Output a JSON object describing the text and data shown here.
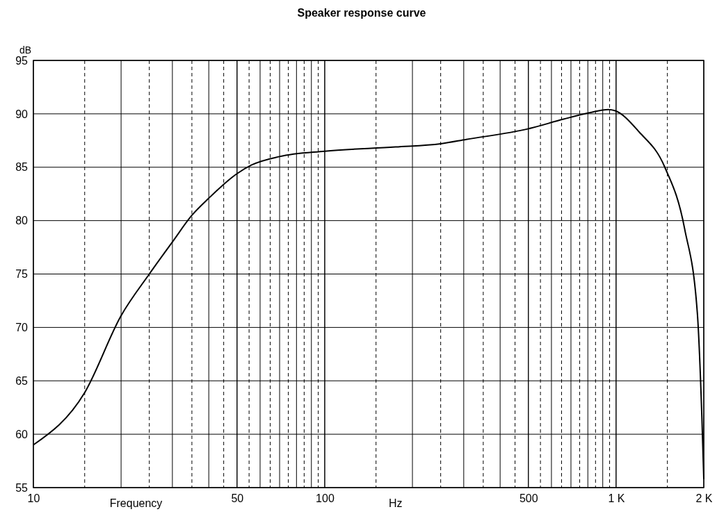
{
  "chart_data": {
    "type": "line",
    "title": "Speaker response curve",
    "xlabel": "Frequency",
    "ylabel": "dB",
    "annotations": [
      "Hz"
    ],
    "log": "x",
    "grid": true,
    "marker": "none",
    "line_style": "solid",
    "xlim": [
      10,
      2000
    ],
    "xticks": [
      10,
      50,
      100,
      500,
      {
        "value": 1000,
        "label": "1 K"
      },
      {
        "value": 2000,
        "label": "2 K"
      }
    ],
    "ylim": [
      55,
      95
    ],
    "yticks": [
      55,
      60,
      65,
      70,
      75,
      80,
      85,
      90,
      95
    ],
    "x": [
      10,
      15,
      20,
      25,
      30,
      35,
      40,
      50,
      56,
      70,
      100,
      175,
      250,
      306,
      500,
      660,
      810,
      940,
      990,
      1200,
      1470,
      1720,
      1900,
      1970,
      2000
    ],
    "series": [
      {
        "color": "#000000",
        "values": [
          59.0,
          63.9,
          71.1,
          75.0,
          78.0,
          80.5,
          82.1,
          84.4,
          85.2,
          86.0,
          86.5,
          86.9,
          87.2,
          87.6,
          88.6,
          89.5,
          90.1,
          90.4,
          90.3,
          88.3,
          85.0,
          79.2,
          71.4,
          61.6,
          55.8
        ]
      }
    ]
  }
}
